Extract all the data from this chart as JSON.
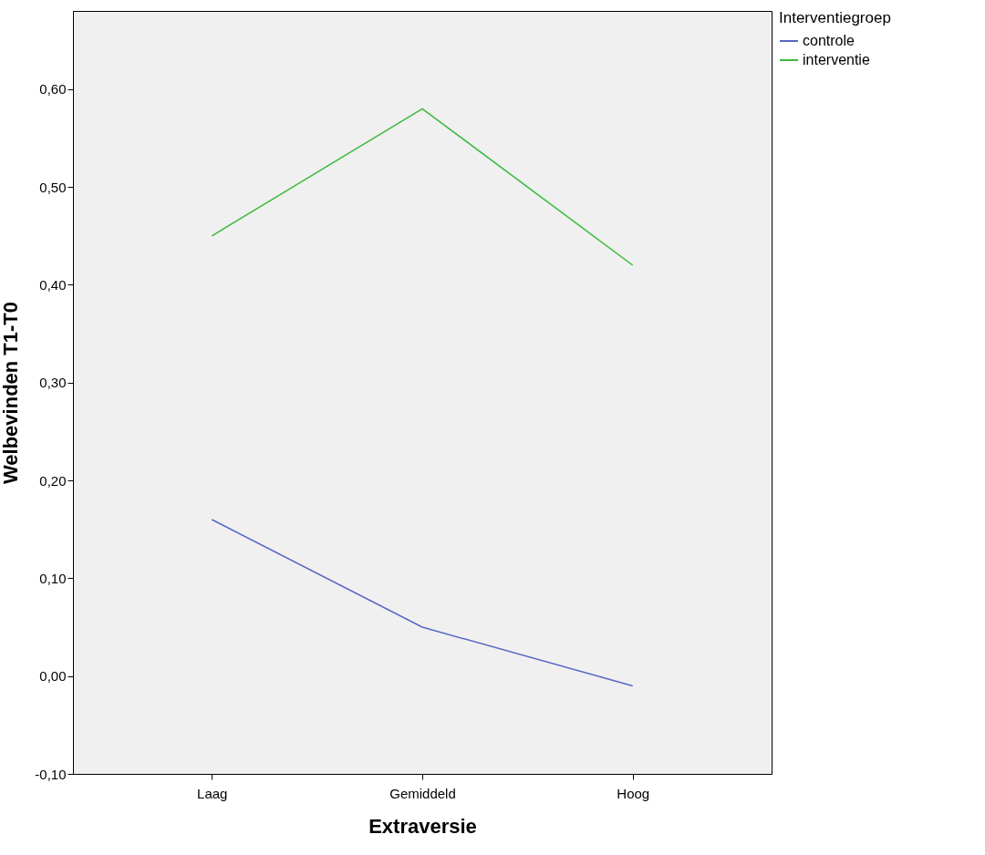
{
  "chart_data": {
    "type": "line",
    "xlabel": "Extraversie",
    "ylabel": "Welbevinden T1-T0",
    "legend_title": "Interventiegroep",
    "legend": "top right",
    "categories": [
      "Laag",
      "Gemiddeld",
      "Hoog"
    ],
    "series": [
      {
        "name": "controle",
        "color": "#5867c4",
        "values": [
          0.16,
          0.05,
          -0.01
        ]
      },
      {
        "name": "interventie",
        "color": "#3cba3c",
        "values": [
          0.45,
          0.58,
          0.42
        ]
      }
    ],
    "ylim": [
      -0.1,
      0.68
    ],
    "yticks": [
      {
        "value": -0.1,
        "label": "-0,10"
      },
      {
        "value": 0,
        "label": "0,00"
      },
      {
        "value": 0.1,
        "label": "0,10"
      },
      {
        "value": 0.2,
        "label": "0,20"
      },
      {
        "value": 0.3,
        "label": "0,30"
      },
      {
        "value": 0.4,
        "label": "0,40"
      },
      {
        "value": 0.5,
        "label": "0,50"
      },
      {
        "value": 0.6,
        "label": "0,60"
      }
    ],
    "grid": false,
    "marker": "none",
    "line_style": "solid"
  }
}
